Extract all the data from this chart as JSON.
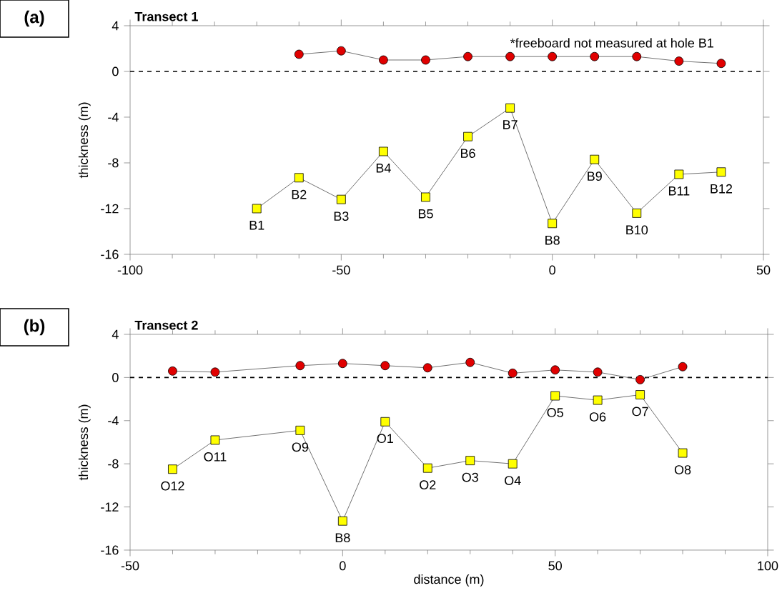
{
  "chart_data": [
    {
      "type": "line",
      "title": "(a)",
      "subtitle": "Transect 1",
      "ylabel": "thickness (m)",
      "xlim": [
        -100,
        50
      ],
      "ylim": [
        -16,
        4
      ],
      "xticks": [
        -100,
        -50,
        0,
        50
      ],
      "yticks": [
        -16,
        -12,
        -8,
        -4,
        0,
        4
      ],
      "grid": false,
      "ref_lines": [
        {
          "axis": "y",
          "value": 0,
          "line_style": "dashed",
          "color": "#000000"
        }
      ],
      "series": [
        {
          "color": "#e00000",
          "marker": "circle",
          "x": [
            -60,
            -50,
            -40,
            -30,
            -20,
            -10,
            0,
            10,
            20,
            30,
            40
          ],
          "values": [
            1.5,
            1.8,
            1.0,
            1.0,
            1.3,
            1.3,
            1.3,
            1.3,
            1.3,
            0.9,
            0.7
          ]
        },
        {
          "color": "#ffff00",
          "marker": "square",
          "x": [
            -70,
            -60,
            -50,
            -40,
            -30,
            -20,
            -10,
            0,
            10,
            20,
            30,
            40
          ],
          "values": [
            -12,
            -9.3,
            -11.2,
            -7,
            -11,
            -5.7,
            -3.2,
            -13.3,
            -7.7,
            -12.4,
            -9,
            -8.8
          ]
        }
      ],
      "annotations": [
        "*freeboard not measured at hole B1",
        {
          "text": "B1",
          "x": -70,
          "y": -12
        },
        {
          "text": "B2",
          "x": -60,
          "y": -9.3
        },
        {
          "text": "B3",
          "x": -50,
          "y": -11.2
        },
        {
          "text": "B4",
          "x": -40,
          "y": -7
        },
        {
          "text": "B5",
          "x": -30,
          "y": -11
        },
        {
          "text": "B6",
          "x": -20,
          "y": -5.7
        },
        {
          "text": "B7",
          "x": -10,
          "y": -3.2
        },
        {
          "text": "B8",
          "x": 0,
          "y": -13.3
        },
        {
          "text": "B9",
          "x": 10,
          "y": -7.7
        },
        {
          "text": "B10",
          "x": 20,
          "y": -12.4
        },
        {
          "text": "B11",
          "x": 30,
          "y": -9
        },
        {
          "text": "B12",
          "x": 40,
          "y": -8.8
        }
      ]
    },
    {
      "type": "line",
      "title": "(b)",
      "subtitle": "Transect 2",
      "xlabel": "distance (m)",
      "ylabel": "thickness (m)",
      "xlim": [
        -50,
        100
      ],
      "ylim": [
        -16,
        4
      ],
      "xticks": [
        -50,
        0,
        50,
        100
      ],
      "yticks": [
        -16,
        -12,
        -8,
        -4,
        0,
        4
      ],
      "grid": false,
      "ref_lines": [
        {
          "axis": "y",
          "value": 0,
          "line_style": "dashed",
          "color": "#000000"
        }
      ],
      "series": [
        {
          "color": "#e00000",
          "marker": "circle",
          "x": [
            -40,
            -30,
            -10,
            0,
            10,
            20,
            30,
            40,
            50,
            60,
            70,
            80
          ],
          "values": [
            0.6,
            0.5,
            1.1,
            1.3,
            1.1,
            0.9,
            1.4,
            0.4,
            0.7,
            0.5,
            -0.2,
            1.0
          ]
        },
        {
          "color": "#ffff00",
          "marker": "square",
          "x": [
            -40,
            -30,
            -10,
            0,
            10,
            20,
            30,
            40,
            50,
            60,
            70,
            80
          ],
          "values": [
            -8.5,
            -5.8,
            -4.9,
            -13.3,
            -4.1,
            -8.4,
            -7.7,
            -8.0,
            -1.7,
            -2.1,
            -1.6,
            -7.0
          ]
        }
      ],
      "annotations": [
        {
          "text": "O12",
          "x": -40,
          "y": -8.5
        },
        {
          "text": "O11",
          "x": -30,
          "y": -5.8
        },
        {
          "text": "O9",
          "x": -10,
          "y": -4.9
        },
        {
          "text": "B8",
          "x": 0,
          "y": -13.3
        },
        {
          "text": "O1",
          "x": 10,
          "y": -4.1
        },
        {
          "text": "O2",
          "x": 20,
          "y": -8.4
        },
        {
          "text": "O3",
          "x": 30,
          "y": -7.7
        },
        {
          "text": "O4",
          "x": 40,
          "y": -8.0
        },
        {
          "text": "O5",
          "x": 50,
          "y": -1.7
        },
        {
          "text": "O6",
          "x": 60,
          "y": -2.1
        },
        {
          "text": "O7",
          "x": 70,
          "y": -1.6
        },
        {
          "text": "O8",
          "x": 80,
          "y": -7.0
        }
      ]
    }
  ]
}
